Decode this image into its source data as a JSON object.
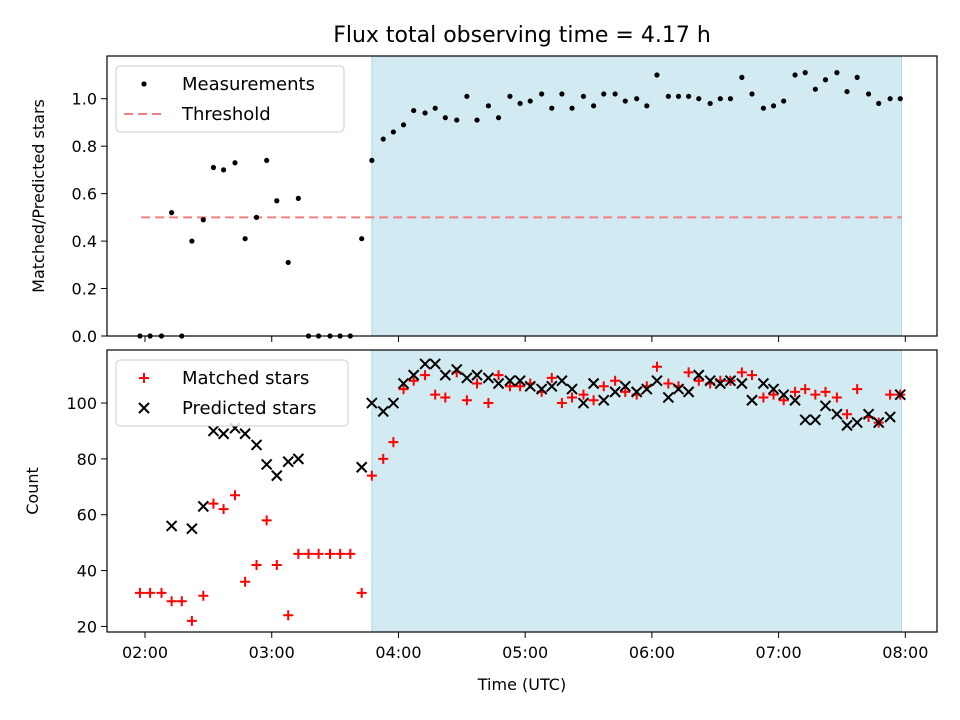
{
  "title": "Flux total observing time = 4.17 h",
  "colors": {
    "measurements": "#000000",
    "threshold": "#f08080",
    "matched": "#ff0000",
    "predicted": "#000000",
    "shade": "#add8e6"
  },
  "chart_data": [
    {
      "type": "scatter",
      "panel": "top",
      "title": "Flux total observing time = 4.17 h",
      "xlabel": "",
      "ylabel": "Matched/Predicted stars",
      "xlim": [
        1.7,
        8.25
      ],
      "ylim": [
        0,
        1.18
      ],
      "yticks": [
        0,
        0.2,
        0.4,
        0.6,
        0.8,
        1.0
      ],
      "ytick_labels": [
        "0.0",
        "0.2",
        "0.4",
        "0.6",
        "0.8",
        "1.0"
      ],
      "xticks": [
        2,
        3,
        4,
        5,
        6,
        7,
        8
      ],
      "shaded_interval": [
        3.79,
        7.97
      ],
      "legend_position": "upper left",
      "threshold": {
        "name": "Threshold",
        "y": 0.5,
        "x": [
          1.97,
          7.97
        ]
      },
      "series": [
        {
          "name": "Measurements",
          "marker": "dot",
          "x": [
            1.96,
            2.04,
            2.13,
            2.21,
            2.29,
            2.37,
            2.46,
            2.54,
            2.62,
            2.71,
            2.79,
            2.88,
            2.96,
            3.04,
            3.13,
            3.21,
            3.29,
            3.37,
            3.46,
            3.54,
            3.62,
            3.71,
            3.79,
            3.88,
            3.96,
            4.04,
            4.12,
            4.21,
            4.29,
            4.37,
            4.46,
            4.54,
            4.62,
            4.71,
            4.79,
            4.88,
            4.96,
            5.04,
            5.13,
            5.21,
            5.29,
            5.37,
            5.46,
            5.54,
            5.62,
            5.71,
            5.79,
            5.88,
            5.96,
            6.04,
            6.13,
            6.21,
            6.29,
            6.37,
            6.46,
            6.54,
            6.62,
            6.71,
            6.79,
            6.88,
            6.96,
            7.04,
            7.13,
            7.21,
            7.29,
            7.37,
            7.46,
            7.54,
            7.62,
            7.71,
            7.79,
            7.88,
            7.96
          ],
          "y": [
            0,
            0,
            0,
            0.52,
            0,
            0.4,
            0.49,
            0.71,
            0.7,
            0.73,
            0.41,
            0.5,
            0.74,
            0.57,
            0.31,
            0.58,
            0,
            0,
            0,
            0,
            0,
            0.41,
            0.74,
            0.83,
            0.86,
            0.89,
            0.95,
            0.94,
            0.96,
            0.92,
            0.91,
            1.01,
            0.91,
            0.97,
            0.92,
            1.01,
            0.98,
            0.99,
            1.02,
            0.96,
            1.02,
            0.96,
            1.01,
            0.97,
            1.02,
            1.02,
            0.99,
            1.0,
            0.97,
            1.1,
            1.01,
            1.01,
            1.01,
            1.0,
            0.98,
            1.0,
            1.0,
            1.09,
            1.02,
            0.96,
            0.97,
            0.99,
            1.1,
            1.11,
            1.04,
            1.08,
            1.11,
            1.03,
            1.09,
            1.02,
            0.98,
            1.0,
            1.0
          ]
        }
      ]
    },
    {
      "type": "scatter",
      "panel": "bottom",
      "xlabel": "Time (UTC)",
      "ylabel": "Count",
      "xlim": [
        1.7,
        8.25
      ],
      "ylim": [
        18,
        119
      ],
      "yticks": [
        20,
        40,
        60,
        80,
        100
      ],
      "ytick_labels": [
        "20",
        "40",
        "60",
        "80",
        "100"
      ],
      "xticks": [
        2,
        3,
        4,
        5,
        6,
        7,
        8
      ],
      "xtick_labels": [
        "02:00",
        "03:00",
        "04:00",
        "05:00",
        "06:00",
        "07:00",
        "08:00"
      ],
      "shaded_interval": [
        3.79,
        7.97
      ],
      "legend_position": "upper left",
      "series": [
        {
          "name": "Matched stars",
          "marker": "plus",
          "x": [
            1.96,
            2.04,
            2.13,
            2.21,
            2.29,
            2.37,
            2.46,
            2.54,
            2.62,
            2.71,
            2.79,
            2.88,
            2.96,
            3.04,
            3.13,
            3.21,
            3.29,
            3.37,
            3.46,
            3.54,
            3.62,
            3.71,
            3.79,
            3.88,
            3.96,
            4.04,
            4.12,
            4.21,
            4.29,
            4.37,
            4.46,
            4.54,
            4.62,
            4.71,
            4.79,
            4.88,
            4.96,
            5.04,
            5.13,
            5.21,
            5.29,
            5.37,
            5.46,
            5.54,
            5.62,
            5.71,
            5.79,
            5.88,
            5.96,
            6.04,
            6.13,
            6.21,
            6.29,
            6.37,
            6.46,
            6.54,
            6.62,
            6.71,
            6.79,
            6.88,
            6.96,
            7.04,
            7.13,
            7.21,
            7.29,
            7.37,
            7.46,
            7.54,
            7.62,
            7.71,
            7.79,
            7.88,
            7.96
          ],
          "y": [
            32,
            32,
            32,
            29,
            29,
            22,
            31,
            64,
            62,
            67,
            36,
            42,
            58,
            42,
            24,
            46,
            46,
            46,
            46,
            46,
            46,
            32,
            74,
            80,
            86,
            105,
            108,
            110,
            103,
            102,
            111,
            101,
            107,
            100,
            110,
            106,
            106,
            107,
            104,
            109,
            100,
            102,
            103,
            101,
            106,
            108,
            104,
            103,
            106,
            113,
            107,
            106,
            111,
            108,
            107,
            108,
            108,
            111,
            110,
            102,
            103,
            101,
            104,
            105,
            103,
            104,
            102,
            96,
            105,
            95,
            93,
            103,
            103
          ]
        },
        {
          "name": "Predicted stars",
          "marker": "x",
          "x": [
            2.21,
            2.37,
            2.46,
            2.54,
            2.62,
            2.71,
            2.79,
            2.88,
            2.96,
            3.04,
            3.13,
            3.21,
            3.71,
            3.79,
            3.88,
            3.96,
            4.04,
            4.12,
            4.21,
            4.29,
            4.37,
            4.46,
            4.54,
            4.62,
            4.71,
            4.79,
            4.88,
            4.96,
            5.04,
            5.13,
            5.21,
            5.29,
            5.37,
            5.46,
            5.54,
            5.62,
            5.71,
            5.79,
            5.88,
            5.96,
            6.04,
            6.13,
            6.21,
            6.29,
            6.37,
            6.46,
            6.54,
            6.62,
            6.71,
            6.79,
            6.88,
            6.96,
            7.04,
            7.13,
            7.21,
            7.29,
            7.37,
            7.46,
            7.54,
            7.62,
            7.71,
            7.79,
            7.88,
            7.96
          ],
          "y": [
            56,
            55,
            63,
            90,
            89,
            91,
            89,
            85,
            78,
            74,
            79,
            80,
            77,
            100,
            97,
            100,
            107,
            110,
            114,
            114,
            110,
            112,
            109,
            110,
            109,
            107,
            108,
            108,
            106,
            105,
            106,
            108,
            105,
            100,
            107,
            101,
            104,
            106,
            104,
            105,
            108,
            102,
            105,
            104,
            110,
            108,
            107,
            108,
            107,
            101,
            107,
            105,
            103,
            101,
            94,
            94,
            99,
            96,
            92,
            93,
            96,
            93,
            95,
            103
          ]
        }
      ]
    }
  ]
}
